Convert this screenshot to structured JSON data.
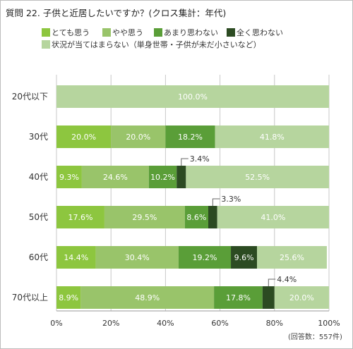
{
  "title": "質問 22. 子供と近居したいですか？(クロス集計：年代)",
  "note": "(回答数：557件)",
  "chart_data": {
    "type": "bar",
    "orientation": "horizontal",
    "stacked": true,
    "percent": true,
    "categories": [
      "20代以下",
      "30代",
      "40代",
      "50代",
      "60代",
      "70代以上"
    ],
    "series": [
      {
        "name": "とても思う",
        "color": "#8dc63f",
        "values": [
          0,
          20.0,
          9.3,
          17.6,
          14.4,
          8.9
        ],
        "labels": [
          "",
          "20.0%",
          "9.3%",
          "17.6%",
          "14.4%",
          "8.9%"
        ]
      },
      {
        "name": "やや思う",
        "color": "#99c46a",
        "values": [
          0,
          20.0,
          24.6,
          29.5,
          30.4,
          48.9
        ],
        "labels": [
          "",
          "20.0%",
          "24.6%",
          "29.5%",
          "30.4%",
          "48.9%"
        ]
      },
      {
        "name": "あまり思わない",
        "color": "#5a9e38",
        "values": [
          0,
          18.2,
          10.2,
          8.6,
          19.2,
          17.8
        ],
        "labels": [
          "",
          "18.2%",
          "10.2%",
          "8.6%",
          "19.2%",
          "17.8%"
        ]
      },
      {
        "name": "全く思わない",
        "color": "#2c4b22",
        "values": [
          0,
          0,
          3.4,
          3.3,
          9.6,
          4.4
        ],
        "labels": [
          "",
          "",
          "3.4%",
          "3.3%",
          "9.6%",
          "4.4%"
        ]
      },
      {
        "name": "状況が当てはまらない（単身世帯・子供が未だ小さいなど）",
        "color": "#b6d59e",
        "values": [
          100.0,
          41.8,
          52.5,
          41.0,
          25.6,
          20.0
        ],
        "labels": [
          "100.0%",
          "41.8%",
          "52.5%",
          "41.0%",
          "25.6%",
          "20.0%"
        ]
      }
    ],
    "x_ticks": [
      "0%",
      "20%",
      "40%",
      "60%",
      "80%",
      "100%"
    ],
    "xlim": [
      0,
      100
    ],
    "callouts": [
      {
        "category": "40代",
        "series": "全く思わない",
        "label": "3.4%"
      },
      {
        "category": "50代",
        "series": "全く思わない",
        "label": "3.3%"
      },
      {
        "category": "70代以上",
        "series": "全く思わない",
        "label": "4.4%"
      }
    ],
    "grid": true,
    "legend": "top"
  }
}
